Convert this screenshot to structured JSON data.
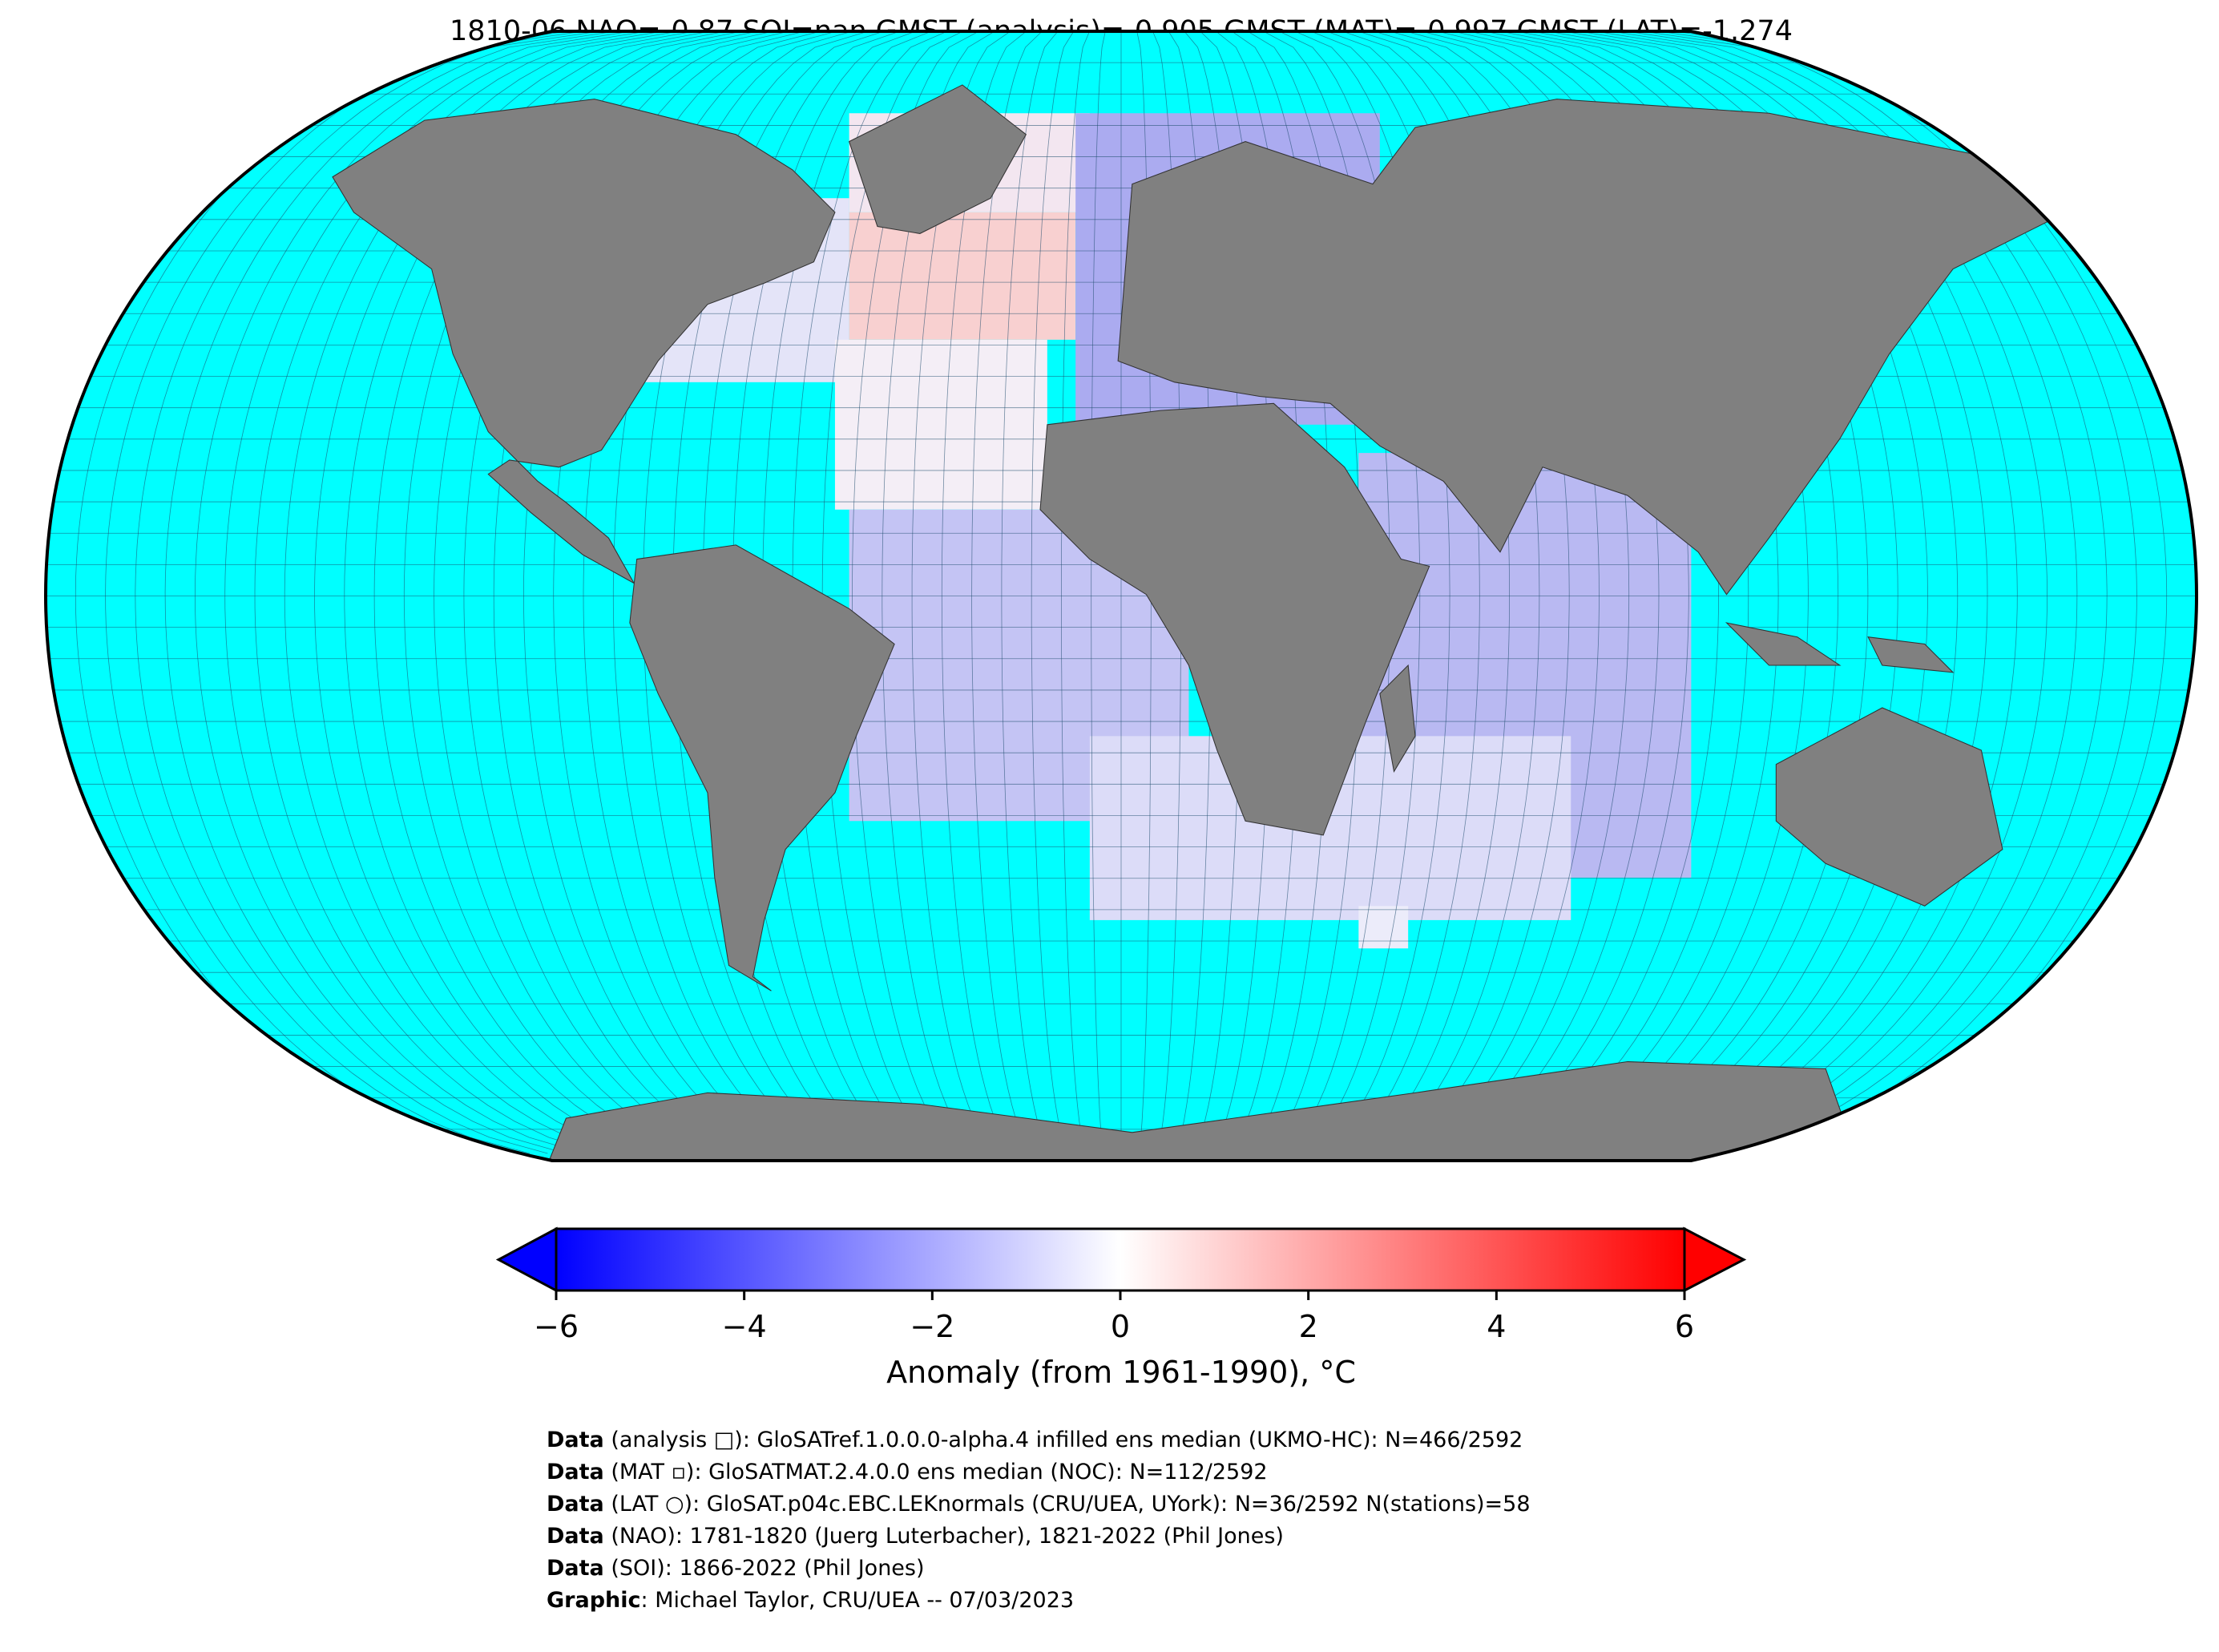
{
  "chart_data": {
    "type": "map",
    "title": "1810-06 NAO=-0.87 SOI=nan GMST (analysis)=-0.905 GMST (MAT)=-0.997 GMST (LAT)=-1.274",
    "colorbar": {
      "label": "Anomaly (from 1961-1990), °C",
      "lim": [
        -6,
        6
      ],
      "colors": [
        "#0000ff",
        "#ffffff",
        "#ff0000"
      ],
      "ticks": [
        {
          "value": -6,
          "label": "−6"
        },
        {
          "value": -4,
          "label": "−4"
        },
        {
          "value": -2,
          "label": "−2"
        },
        0,
        2,
        4,
        6
      ]
    },
    "ocean_color": "#00ffff",
    "land_color": "#808080",
    "footer": [
      {
        "label": "Data",
        "text": " (analysis □): GloSATref.1.0.0.0-alpha.4 infilled ens median (UKMO-HC): N=466/2592"
      },
      {
        "label": "Data",
        "text": " (MAT ▫): GloSATMAT.2.4.0.0 ens median (NOC): N=112/2592"
      },
      {
        "label": "Data",
        "text": " (LAT ○): GloSAT.p04c.EBC.LEKnormals (CRU/UEA, UYork): N=36/2592 N(stations)=58"
      },
      {
        "label": "Data",
        "text": " (NAO): 1781-1820 (Juerg Luterbacher), 1821-2022 (Phil Jones)"
      },
      {
        "label": "Data",
        "text": " (SOI): 1866-2022 (Phil Jones)"
      },
      {
        "label": "Graphic",
        "text": ": Michael Taylor, CRU/UEA -- 07/03/2023"
      }
    ]
  }
}
